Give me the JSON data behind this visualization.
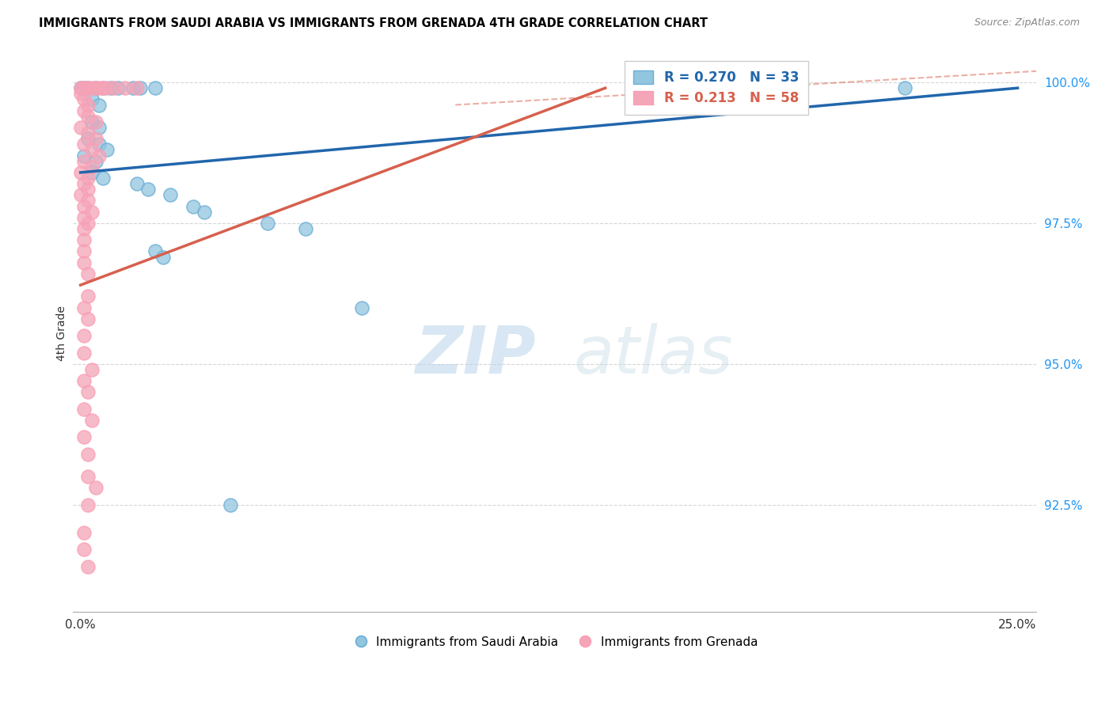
{
  "title": "IMMIGRANTS FROM SAUDI ARABIA VS IMMIGRANTS FROM GRENADA 4TH GRADE CORRELATION CHART",
  "source": "Source: ZipAtlas.com",
  "ylabel": "4th Grade",
  "ymin": 0.906,
  "ymax": 1.005,
  "xmin": -0.002,
  "xmax": 0.255,
  "R_blue": 0.27,
  "N_blue": 33,
  "R_pink": 0.213,
  "N_pink": 58,
  "blue_color": "#92c5de",
  "pink_color": "#f4a5b8",
  "blue_edge_color": "#6baed6",
  "pink_edge_color": "#fa9fb5",
  "blue_line_color": "#2166ac",
  "pink_line_color": "#d6604d",
  "yticks": [
    1.0,
    0.975,
    0.95,
    0.925
  ],
  "ytick_labels": [
    "100.0%",
    "97.5%",
    "95.0%",
    "92.5%"
  ],
  "blue_scatter": [
    [
      0.0,
      0.999
    ],
    [
      0.001,
      0.999
    ],
    [
      0.002,
      0.999
    ],
    [
      0.004,
      0.999
    ],
    [
      0.006,
      0.999
    ],
    [
      0.008,
      0.999
    ],
    [
      0.01,
      0.999
    ],
    [
      0.014,
      0.999
    ],
    [
      0.016,
      0.999
    ],
    [
      0.02,
      0.999
    ],
    [
      0.003,
      0.997
    ],
    [
      0.005,
      0.996
    ],
    [
      0.003,
      0.993
    ],
    [
      0.005,
      0.992
    ],
    [
      0.002,
      0.99
    ],
    [
      0.005,
      0.989
    ],
    [
      0.007,
      0.988
    ],
    [
      0.001,
      0.987
    ],
    [
      0.004,
      0.986
    ],
    [
      0.003,
      0.984
    ],
    [
      0.006,
      0.983
    ],
    [
      0.015,
      0.982
    ],
    [
      0.018,
      0.981
    ],
    [
      0.024,
      0.98
    ],
    [
      0.03,
      0.978
    ],
    [
      0.033,
      0.977
    ],
    [
      0.05,
      0.975
    ],
    [
      0.06,
      0.974
    ],
    [
      0.02,
      0.97
    ],
    [
      0.022,
      0.969
    ],
    [
      0.075,
      0.96
    ],
    [
      0.04,
      0.925
    ],
    [
      0.22,
      0.999
    ]
  ],
  "pink_scatter": [
    [
      0.0,
      0.999
    ],
    [
      0.001,
      0.999
    ],
    [
      0.002,
      0.999
    ],
    [
      0.003,
      0.999
    ],
    [
      0.004,
      0.999
    ],
    [
      0.005,
      0.999
    ],
    [
      0.006,
      0.999
    ],
    [
      0.007,
      0.999
    ],
    [
      0.009,
      0.999
    ],
    [
      0.012,
      0.999
    ],
    [
      0.015,
      0.999
    ],
    [
      0.0,
      0.998
    ],
    [
      0.001,
      0.997
    ],
    [
      0.002,
      0.996
    ],
    [
      0.001,
      0.995
    ],
    [
      0.002,
      0.994
    ],
    [
      0.004,
      0.993
    ],
    [
      0.0,
      0.992
    ],
    [
      0.002,
      0.991
    ],
    [
      0.004,
      0.99
    ],
    [
      0.001,
      0.989
    ],
    [
      0.003,
      0.988
    ],
    [
      0.005,
      0.987
    ],
    [
      0.001,
      0.986
    ],
    [
      0.003,
      0.985
    ],
    [
      0.0,
      0.984
    ],
    [
      0.002,
      0.983
    ],
    [
      0.001,
      0.982
    ],
    [
      0.002,
      0.981
    ],
    [
      0.0,
      0.98
    ],
    [
      0.002,
      0.979
    ],
    [
      0.001,
      0.978
    ],
    [
      0.003,
      0.977
    ],
    [
      0.001,
      0.976
    ],
    [
      0.002,
      0.975
    ],
    [
      0.001,
      0.974
    ],
    [
      0.001,
      0.972
    ],
    [
      0.001,
      0.97
    ],
    [
      0.001,
      0.968
    ],
    [
      0.002,
      0.966
    ],
    [
      0.002,
      0.962
    ],
    [
      0.001,
      0.96
    ],
    [
      0.002,
      0.958
    ],
    [
      0.001,
      0.955
    ],
    [
      0.001,
      0.952
    ],
    [
      0.003,
      0.949
    ],
    [
      0.001,
      0.947
    ],
    [
      0.002,
      0.945
    ],
    [
      0.001,
      0.942
    ],
    [
      0.003,
      0.94
    ],
    [
      0.001,
      0.937
    ],
    [
      0.002,
      0.934
    ],
    [
      0.002,
      0.93
    ],
    [
      0.004,
      0.928
    ],
    [
      0.002,
      0.925
    ],
    [
      0.001,
      0.92
    ],
    [
      0.001,
      0.917
    ],
    [
      0.002,
      0.914
    ]
  ],
  "blue_trendline": [
    [
      0.0,
      0.984
    ],
    [
      0.25,
      0.999
    ]
  ],
  "pink_trendline": [
    [
      0.0,
      0.964
    ],
    [
      0.14,
      0.999
    ]
  ],
  "watermark_zip": "ZIP",
  "watermark_atlas": "atlas",
  "legend_text1": "R = 0.270   N = 33",
  "legend_text2": "R = 0.213   N = 58",
  "bottom_legend1": "Immigrants from Saudi Arabia",
  "bottom_legend2": "Immigrants from Grenada"
}
